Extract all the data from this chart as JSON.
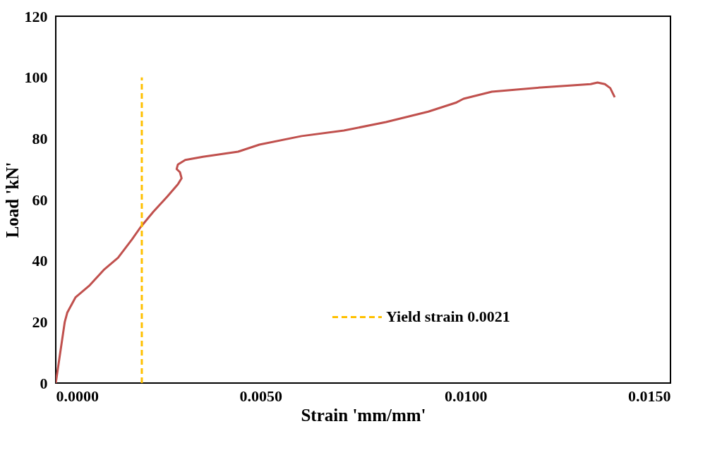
{
  "chart_data": {
    "type": "line",
    "xlabel": "Strain 'mm/mm'",
    "ylabel": "Load 'kN'",
    "xlim": [
      0,
      0.015
    ],
    "xticks": [
      {
        "value": 0,
        "label": "0.0000"
      },
      {
        "value": 0.005,
        "label": "0.0050"
      },
      {
        "value": 0.01,
        "label": "0.0100"
      },
      {
        "value": 0.015,
        "label": "0.0150"
      }
    ],
    "ylim": [
      0,
      120
    ],
    "yticks": [
      0,
      20,
      40,
      60,
      80,
      100,
      120
    ],
    "grid": false,
    "legend": "bottom right",
    "marker": "none",
    "series": [
      {
        "color": "#c0504d",
        "line_style": "solid",
        "x": [
          0,
          0.00022,
          0.00028,
          0.00048,
          0.00083,
          0.00117,
          0.00152,
          0.00186,
          0.00207,
          0.00238,
          0.00272,
          0.00298,
          0.00307,
          0.00303,
          0.00295,
          0.00298,
          0.00316,
          0.00359,
          0.00445,
          0.00497,
          0.006,
          0.00703,
          0.00806,
          0.00909,
          0.00978,
          0.00995,
          0.01064,
          0.01184,
          0.01305,
          0.01322,
          0.0134,
          0.01353,
          0.01364
        ],
        "values": [
          0,
          20,
          23,
          28,
          32,
          37,
          41,
          47,
          51,
          56,
          61,
          65,
          67,
          69,
          70,
          71.5,
          73,
          74,
          75.7,
          78,
          80.8,
          82.6,
          85.4,
          88.8,
          91.8,
          93,
          95.3,
          96.7,
          97.8,
          98.3,
          97.8,
          96.5,
          93.5
        ]
      },
      {
        "name": "Yield strain 0.0021",
        "color": "#ffc000",
        "line_style": "dashed",
        "x": [
          0.0021,
          0.0021
        ],
        "values": [
          0,
          100
        ]
      }
    ]
  }
}
